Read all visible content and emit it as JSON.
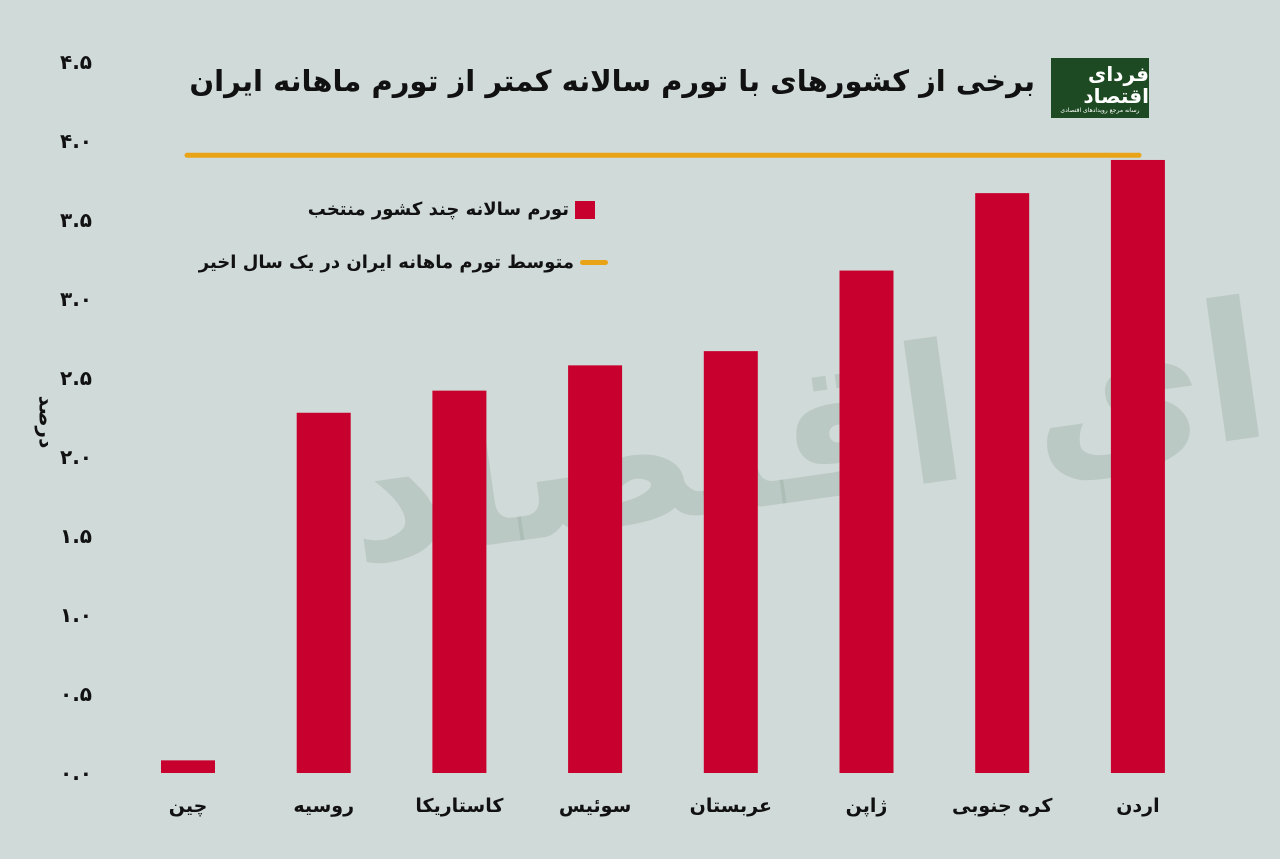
{
  "chart_data": {
    "type": "bar",
    "title": "برخی از کشورهای با تورم سالانه کمتر از تورم ماهانه ایران",
    "ylabel": "درصد",
    "xlabel": "",
    "ylim": [
      0,
      4.5
    ],
    "yticks": [
      0,
      0.5,
      1.0,
      1.5,
      2.0,
      2.5,
      3.0,
      3.5,
      4.0,
      4.5
    ],
    "ytick_labels": [
      "۰.۰",
      "۰.۵",
      "۱.۰",
      "۱.۵",
      "۲.۰",
      "۲.۵",
      "۳.۰",
      "۳.۵",
      "۴.۰",
      "۴.۵"
    ],
    "categories": [
      "چین",
      "روسیه",
      "کاستاریکا",
      "سوئیس",
      "عربستان",
      "ژاپن",
      "کره جنوبی",
      "اردن"
    ],
    "series": [
      {
        "name": "تورم سالانه چند کشور منتخب",
        "type": "bar",
        "color": "#c8002d",
        "values": [
          0.08,
          2.28,
          2.42,
          2.58,
          2.67,
          3.18,
          3.67,
          3.88
        ]
      },
      {
        "name": "متوسط تورم ماهانه ایران در یک سال اخیر",
        "type": "hline",
        "color": "#e8a317",
        "value": 3.91
      }
    ],
    "legend": "top-left",
    "grid": false
  },
  "logo": {
    "main": "فردای اقتصاد",
    "sub": "رسانه مرجع رویدادهای اقتصادی"
  },
  "watermark": "فردای اقتصاد"
}
